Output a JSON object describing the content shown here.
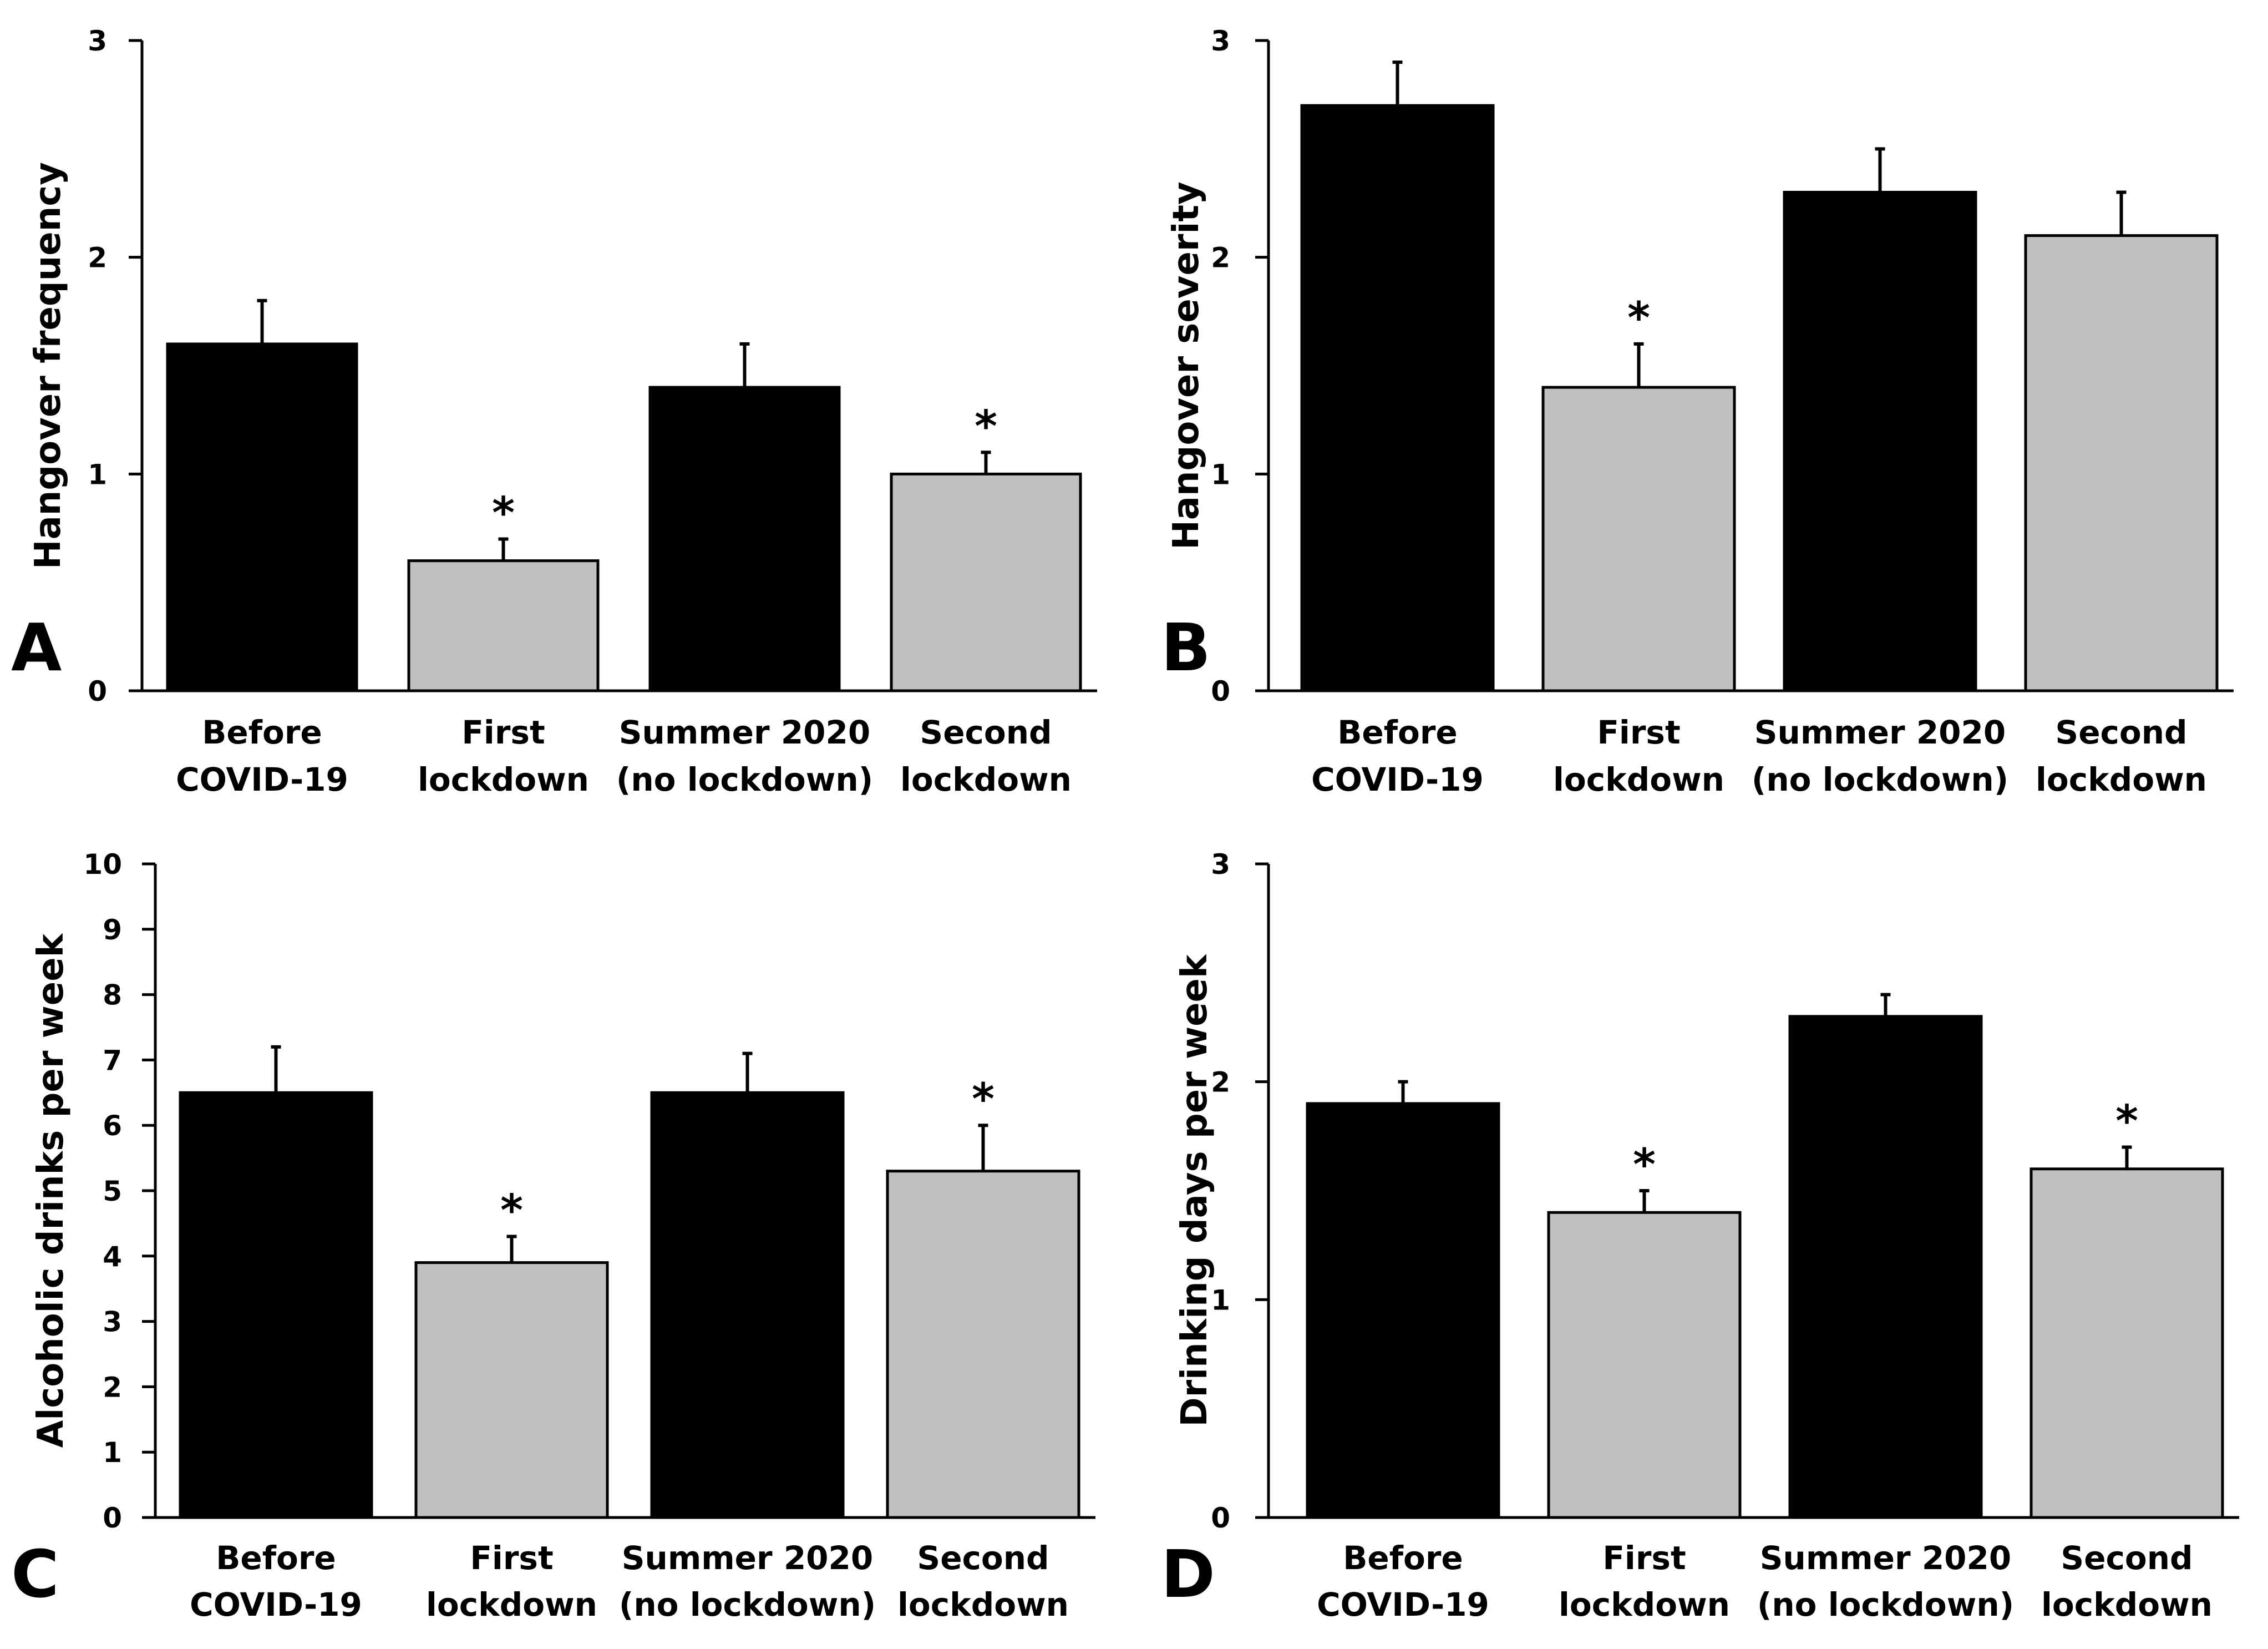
{
  "colors": {
    "before_covid": "#000000",
    "first_lockdown": "#c0c0c0",
    "summer_2020": "#000000",
    "second_lockdown": "#c0c0c0",
    "axis": "#000000"
  },
  "chart_data": [
    {
      "panel": "A",
      "type": "bar",
      "categories": [
        [
          "Before",
          "COVID-19"
        ],
        [
          "First",
          "lockdown"
        ],
        [
          "Summer 2020",
          "(no lockdown)"
        ],
        [
          "Second",
          "lockdown"
        ]
      ],
      "values": [
        1.6,
        0.6,
        1.4,
        1.0
      ],
      "errors": [
        0.2,
        0.1,
        0.2,
        0.1
      ],
      "significance": [
        "",
        "*",
        "",
        "*"
      ],
      "ylabel": "Hangover frequency",
      "ylim": [
        0,
        3
      ],
      "yticks": [
        0,
        1,
        2,
        3
      ],
      "grid": false
    },
    {
      "panel": "B",
      "type": "bar",
      "categories": [
        [
          "Before",
          "COVID-19"
        ],
        [
          "First",
          "lockdown"
        ],
        [
          "Summer 2020",
          "(no lockdown)"
        ],
        [
          "Second",
          "lockdown"
        ]
      ],
      "values": [
        2.7,
        1.4,
        2.3,
        2.1
      ],
      "errors": [
        0.2,
        0.2,
        0.2,
        0.2
      ],
      "significance": [
        "",
        "*",
        "",
        ""
      ],
      "ylabel": "Hangover severity",
      "ylim": [
        0,
        3
      ],
      "yticks": [
        0,
        1,
        2,
        3
      ],
      "grid": false
    },
    {
      "panel": "C",
      "type": "bar",
      "categories": [
        [
          "Before",
          "COVID-19"
        ],
        [
          "First",
          "lockdown"
        ],
        [
          "Summer 2020",
          "(no lockdown)"
        ],
        [
          "Second",
          "lockdown"
        ]
      ],
      "values": [
        6.5,
        3.9,
        6.5,
        5.3
      ],
      "errors": [
        0.7,
        0.4,
        0.6,
        0.7
      ],
      "significance": [
        "",
        "*",
        "",
        "*"
      ],
      "ylabel": "Alcoholic drinks per week",
      "ylim": [
        0,
        10
      ],
      "yticks": [
        0,
        1,
        2,
        3,
        4,
        5,
        6,
        7,
        8,
        9,
        10
      ],
      "grid": false
    },
    {
      "panel": "D",
      "type": "bar",
      "categories": [
        [
          "Before",
          "COVID-19"
        ],
        [
          "First",
          "lockdown"
        ],
        [
          "Summer 2020",
          "(no lockdown)"
        ],
        [
          "Second",
          "lockdown"
        ]
      ],
      "values": [
        1.9,
        1.4,
        2.3,
        1.6
      ],
      "errors": [
        0.1,
        0.1,
        0.1,
        0.1
      ],
      "significance": [
        "",
        "*",
        "",
        "*"
      ],
      "ylabel": "Drinking days per week",
      "ylim": [
        0,
        3
      ],
      "yticks": [
        0,
        1,
        2,
        3
      ],
      "grid": false
    }
  ]
}
